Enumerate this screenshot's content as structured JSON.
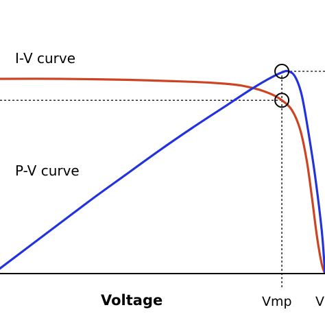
{
  "chart_data": {
    "type": "line",
    "x_label": "Voltage",
    "ticks": {
      "vmp": "Vmp",
      "voc": "V"
    },
    "markers": {
      "vmp": 0.87,
      "voc": 1.0
    },
    "series": [
      {
        "name": "I-V curve",
        "color": "#cc4422",
        "points": [
          [
            0,
            1.0
          ],
          [
            0.2,
            1.0
          ],
          [
            0.4,
            0.995
          ],
          [
            0.6,
            0.985
          ],
          [
            0.7,
            0.975
          ],
          [
            0.75,
            0.965
          ],
          [
            0.8,
            0.945
          ],
          [
            0.84,
            0.92
          ],
          [
            0.87,
            0.89
          ],
          [
            0.9,
            0.84
          ],
          [
            0.925,
            0.74
          ],
          [
            0.945,
            0.58
          ],
          [
            0.96,
            0.4
          ],
          [
            0.975,
            0.2
          ],
          [
            0.99,
            0.05
          ],
          [
            1.0,
            0.0
          ]
        ]
      },
      {
        "name": "P-V curve",
        "color": "#2233dd",
        "points": [
          [
            0,
            0.0
          ],
          [
            0.1,
            0.115
          ],
          [
            0.2,
            0.23
          ],
          [
            0.3,
            0.345
          ],
          [
            0.4,
            0.455
          ],
          [
            0.5,
            0.565
          ],
          [
            0.6,
            0.67
          ],
          [
            0.7,
            0.77
          ],
          [
            0.78,
            0.85
          ],
          [
            0.83,
            0.895
          ],
          [
            0.87,
            0.925
          ],
          [
            0.89,
            0.93
          ],
          [
            0.91,
            0.905
          ],
          [
            0.93,
            0.82
          ],
          [
            0.95,
            0.65
          ],
          [
            0.97,
            0.45
          ],
          [
            0.99,
            0.2
          ],
          [
            1.0,
            0.0
          ]
        ]
      }
    ],
    "max_points": {
      "pmp": 0.93,
      "imp": 0.89
    },
    "grid": false
  }
}
